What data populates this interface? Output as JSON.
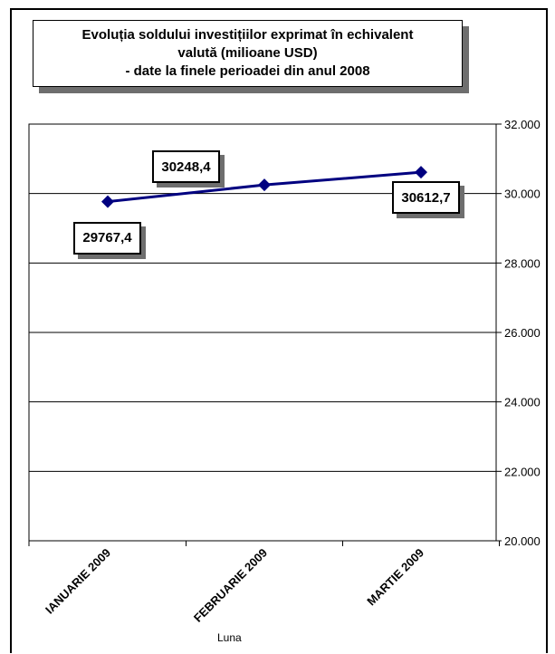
{
  "title": {
    "line1": "Evoluția soldului investițiilor exprimat în echivalent",
    "line2": "valută (milioane USD)",
    "line3": "- date la finele perioadei din anul 2008"
  },
  "chart_data": {
    "type": "line",
    "title": "Evoluția soldului investițiilor exprimat în echivalent valută (milioane USD) - date la finele perioadei din anul 2008",
    "categories": [
      "IANUARIE 2009",
      "FEBRUARIE 2009",
      "MARTIE 2009"
    ],
    "series": [
      {
        "values": [
          29767.4,
          30248.4,
          30612.7
        ],
        "data_labels": [
          "29767,4",
          "30248,4",
          "30612,7"
        ]
      }
    ],
    "xlabel": "Luna",
    "ylabel": "",
    "ylim": [
      20000,
      32000
    ],
    "yticks": [
      20000,
      22000,
      24000,
      26000,
      28000,
      30000,
      32000
    ],
    "ytick_labels": [
      "20.000",
      "22.000",
      "24.000",
      "26.000",
      "28.000",
      "30.000",
      "32.000"
    ],
    "y_axis_side": "right",
    "grid": true,
    "line_color": "#000080",
    "marker": "diamond"
  }
}
